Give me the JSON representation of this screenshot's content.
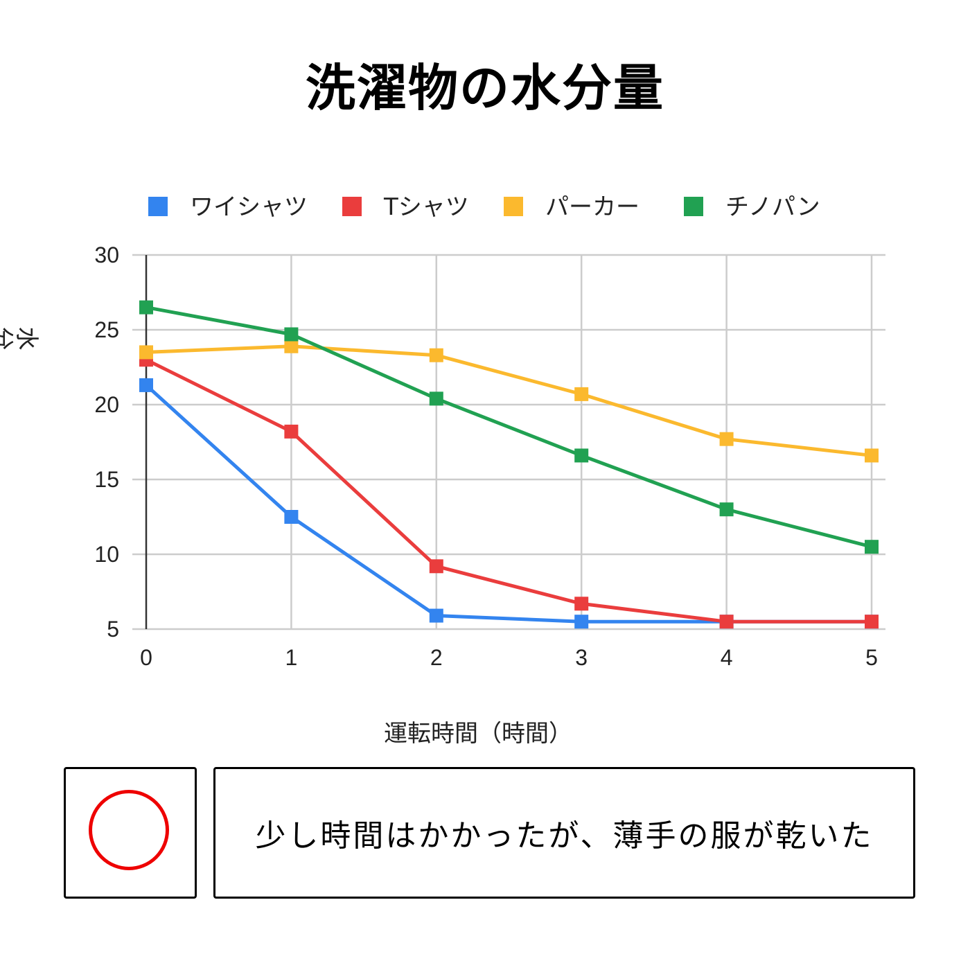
{
  "chart_data": {
    "type": "line",
    "title": "洗濯物の水分量",
    "xlabel": "運転時間（時間）",
    "ylabel": "水分量（%）",
    "x": [
      0,
      1,
      2,
      3,
      4,
      5
    ],
    "xticks": [
      "0",
      "1",
      "2",
      "3",
      "4",
      "5"
    ],
    "yticks": [
      "5",
      "10",
      "15",
      "20",
      "25",
      "30"
    ],
    "ylim": [
      5,
      30
    ],
    "xlim": [
      0,
      5
    ],
    "grid": true,
    "legend_position": "top",
    "marker": "square",
    "series": [
      {
        "name": "ワイシャツ",
        "color": "#3384ef",
        "values": [
          21.3,
          12.5,
          5.9,
          5.5,
          5.5,
          5.5
        ]
      },
      {
        "name": "Tシャツ",
        "color": "#ea3d3d",
        "values": [
          23.0,
          18.2,
          9.2,
          6.7,
          5.5,
          5.5
        ]
      },
      {
        "name": "パーカー",
        "color": "#fbb92e",
        "values": [
          23.5,
          23.9,
          23.3,
          20.7,
          17.7,
          16.6
        ]
      },
      {
        "name": "チノパン",
        "color": "#21a152",
        "values": [
          26.5,
          24.7,
          20.4,
          16.6,
          13.0,
          10.5
        ]
      }
    ]
  },
  "verdict": {
    "symbol": "○",
    "icon": "red-circle-icon",
    "color": "#ee0000"
  },
  "comment": "少し時間はかかったが、薄手の服が乾いた"
}
